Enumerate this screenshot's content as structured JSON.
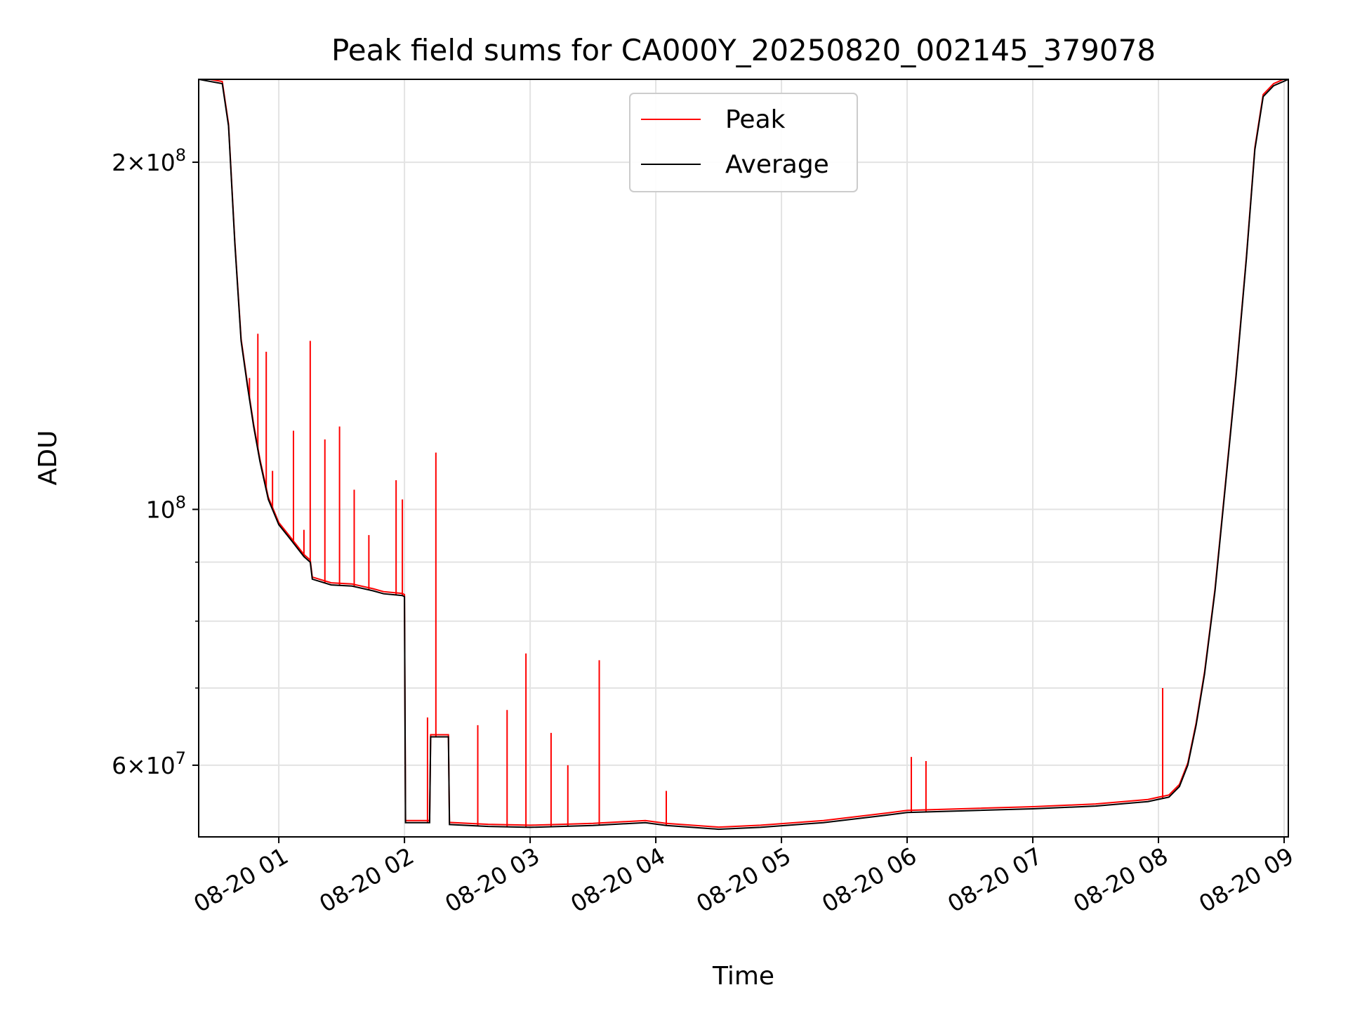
{
  "chart_data": {
    "type": "line",
    "title": "Peak field sums for CA000Y_20250820_002145_379078",
    "xlabel": "Time",
    "ylabel": "ADU",
    "y_scale": "log",
    "xlim": [
      "2025-08-20 00:21:45",
      "2025-08-20 09:02:00"
    ],
    "ylim": [
      52000000,
      236000000
    ],
    "x_ticks": [
      {
        "t": "2025-08-20 01:00",
        "label": "08-20 01"
      },
      {
        "t": "2025-08-20 02:00",
        "label": "08-20 02"
      },
      {
        "t": "2025-08-20 03:00",
        "label": "08-20 03"
      },
      {
        "t": "2025-08-20 04:00",
        "label": "08-20 04"
      },
      {
        "t": "2025-08-20 05:00",
        "label": "08-20 05"
      },
      {
        "t": "2025-08-20 06:00",
        "label": "08-20 06"
      },
      {
        "t": "2025-08-20 07:00",
        "label": "08-20 07"
      },
      {
        "t": "2025-08-20 08:00",
        "label": "08-20 08"
      },
      {
        "t": "2025-08-20 09:00",
        "label": "08-20 09"
      }
    ],
    "y_ticks": [
      {
        "v": 60000000,
        "mant": "6",
        "exp": "7"
      },
      {
        "v": 100000000,
        "mant": "",
        "exp": "8"
      },
      {
        "v": 200000000,
        "mant": "2",
        "exp": "8"
      }
    ],
    "y_minor_ticks": [
      70000000,
      80000000,
      90000000
    ],
    "grid": true,
    "legend_position": "top-center",
    "series": [
      {
        "name": "Average",
        "color": "#000000",
        "points": [
          [
            "2025-08-20 00:21:45",
            236000000
          ],
          [
            "2025-08-20 00:33:00",
            234000000
          ],
          [
            "2025-08-20 00:36:00",
            215000000
          ],
          [
            "2025-08-20 00:39:00",
            170000000
          ],
          [
            "2025-08-20 00:42:00",
            140000000
          ],
          [
            "2025-08-20 00:45:00",
            128000000
          ],
          [
            "2025-08-20 00:48:00",
            118000000
          ],
          [
            "2025-08-20 00:51:00",
            110000000
          ],
          [
            "2025-08-20 00:55:00",
            102000000
          ],
          [
            "2025-08-20 01:00:00",
            97000000
          ],
          [
            "2025-08-20 01:06:00",
            94000000
          ],
          [
            "2025-08-20 01:12:00",
            91000000
          ],
          [
            "2025-08-20 01:15:00",
            90000000
          ],
          [
            "2025-08-20 01:16:00",
            87000000
          ],
          [
            "2025-08-20 01:25:00",
            86000000
          ],
          [
            "2025-08-20 01:35:00",
            85800000
          ],
          [
            "2025-08-20 01:45:00",
            85000000
          ],
          [
            "2025-08-20 01:50:00",
            84500000
          ],
          [
            "2025-08-20 01:59:00",
            84200000
          ],
          [
            "2025-08-20 02:00:00",
            84000000
          ],
          [
            "2025-08-20 02:00:30",
            53500000
          ],
          [
            "2025-08-20 02:12:00",
            53500000
          ],
          [
            "2025-08-20 02:12:30",
            63500000
          ],
          [
            "2025-08-20 02:21:00",
            63500000
          ],
          [
            "2025-08-20 02:21:30",
            53300000
          ],
          [
            "2025-08-20 02:40:00",
            53100000
          ],
          [
            "2025-08-20 03:00:00",
            53000000
          ],
          [
            "2025-08-20 03:30:00",
            53200000
          ],
          [
            "2025-08-20 03:55:00",
            53500000
          ],
          [
            "2025-08-20 04:05:00",
            53200000
          ],
          [
            "2025-08-20 04:30:00",
            52800000
          ],
          [
            "2025-08-20 04:50:00",
            53000000
          ],
          [
            "2025-08-20 05:20:00",
            53500000
          ],
          [
            "2025-08-20 05:50:00",
            54300000
          ],
          [
            "2025-08-20 06:00:00",
            54600000
          ],
          [
            "2025-08-20 06:30:00",
            54800000
          ],
          [
            "2025-08-20 07:00:00",
            55000000
          ],
          [
            "2025-08-20 07:30:00",
            55300000
          ],
          [
            "2025-08-20 07:55:00",
            55800000
          ],
          [
            "2025-08-20 08:05:00",
            56300000
          ],
          [
            "2025-08-20 08:10:00",
            57500000
          ],
          [
            "2025-08-20 08:14:00",
            60000000
          ],
          [
            "2025-08-20 08:18:00",
            65000000
          ],
          [
            "2025-08-20 08:22:00",
            72000000
          ],
          [
            "2025-08-20 08:27:00",
            85000000
          ],
          [
            "2025-08-20 08:32:00",
            105000000
          ],
          [
            "2025-08-20 08:37:00",
            130000000
          ],
          [
            "2025-08-20 08:42:00",
            165000000
          ],
          [
            "2025-08-20 08:46:00",
            205000000
          ],
          [
            "2025-08-20 08:50:00",
            228000000
          ],
          [
            "2025-08-20 08:55:00",
            233000000
          ],
          [
            "2025-08-20 09:02:00",
            236000000
          ]
        ]
      },
      {
        "name": "Peak",
        "color": "#ff0000",
        "spikes": [
          [
            "2025-08-20 00:46:00",
            130000000
          ],
          [
            "2025-08-20 00:50:00",
            142000000
          ],
          [
            "2025-08-20 00:54:00",
            137000000
          ],
          [
            "2025-08-20 00:57:00",
            108000000
          ],
          [
            "2025-08-20 01:07:00",
            117000000
          ],
          [
            "2025-08-20 01:12:00",
            96000000
          ],
          [
            "2025-08-20 01:15:00",
            140000000
          ],
          [
            "2025-08-20 01:22:00",
            115000000
          ],
          [
            "2025-08-20 01:29:00",
            118000000
          ],
          [
            "2025-08-20 01:36:00",
            104000000
          ],
          [
            "2025-08-20 01:43:00",
            95000000
          ],
          [
            "2025-08-20 01:56:00",
            106000000
          ],
          [
            "2025-08-20 01:59:00",
            102000000
          ],
          [
            "2025-08-20 02:15:00",
            112000000
          ],
          [
            "2025-08-20 02:11:00",
            66000000
          ],
          [
            "2025-08-20 02:35:00",
            65000000
          ],
          [
            "2025-08-20 02:49:00",
            67000000
          ],
          [
            "2025-08-20 02:58:00",
            75000000
          ],
          [
            "2025-08-20 03:10:00",
            64000000
          ],
          [
            "2025-08-20 03:18:00",
            60000000
          ],
          [
            "2025-08-20 03:33:00",
            74000000
          ],
          [
            "2025-08-20 04:05:00",
            57000000
          ],
          [
            "2025-08-20 06:02:00",
            61000000
          ],
          [
            "2025-08-20 06:09:00",
            60500000
          ],
          [
            "2025-08-20 08:02:00",
            70000000
          ]
        ]
      }
    ]
  }
}
